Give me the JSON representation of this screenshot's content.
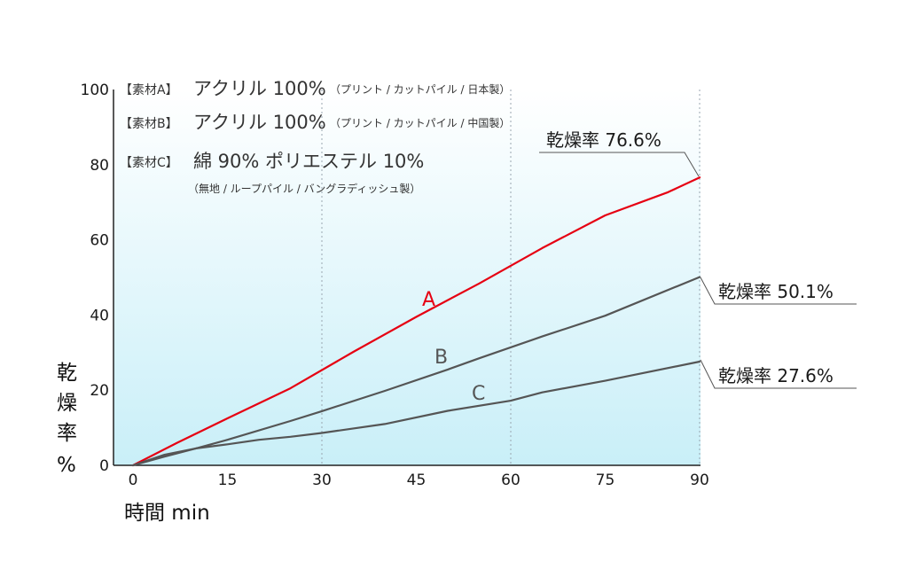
{
  "chart_data": {
    "type": "line",
    "xlabel": "時間 min",
    "ylabel_chars": [
      "乾",
      "燥",
      "率",
      "%"
    ],
    "xlim": [
      0,
      90
    ],
    "ylim": [
      0,
      100
    ],
    "x_ticks": [
      {
        "value": 0,
        "label": "0",
        "highlight": false
      },
      {
        "value": 15,
        "label": "15",
        "highlight": false
      },
      {
        "value": 30,
        "label": "30",
        "highlight": false
      },
      {
        "value": 45,
        "label": "45",
        "highlight": false
      },
      {
        "value": 60,
        "label": "60",
        "highlight": true
      },
      {
        "value": 75,
        "label": "75",
        "highlight": false
      },
      {
        "value": 90,
        "label": "90",
        "highlight": true
      }
    ],
    "y_ticks": [
      0,
      20,
      40,
      60,
      80,
      100
    ],
    "gridlines_x": [
      30,
      60,
      90
    ],
    "materials": [
      {
        "tag": "【素材A】",
        "main": "アクリル 100%",
        "note": "（プリント / カットパイル / 日本製）"
      },
      {
        "tag": "【素材B】",
        "main": "アクリル 100%",
        "note": "（プリント / カットパイル / 中国製）"
      },
      {
        "tag": "【素材C】",
        "main": "綿 90%  ポリエステル 10%",
        "note": "（無地 / ループパイル / バングラディッシュ製）"
      }
    ],
    "series": [
      {
        "name": "A",
        "color": "#e60012",
        "x": [
          0,
          7,
          15,
          25,
          35,
          45,
          55,
          65,
          75,
          85,
          90
        ],
        "y": [
          0,
          6,
          12.5,
          20.5,
          30.2,
          39.5,
          48.4,
          57.8,
          66.5,
          72.7,
          76.6
        ],
        "callout": "乾燥率 76.6%"
      },
      {
        "name": "B",
        "color": "#555555",
        "x": [
          0,
          5,
          10,
          15,
          25,
          30,
          40,
          50,
          55,
          65,
          75,
          90
        ],
        "y": [
          0,
          2.3,
          4.5,
          6.8,
          11.8,
          14.4,
          19.8,
          25.5,
          28.5,
          34.3,
          39.8,
          50.1
        ],
        "callout": "乾燥率 50.1%"
      },
      {
        "name": "C",
        "color": "#555555",
        "x": [
          0,
          5,
          10,
          15,
          20,
          25,
          30,
          40,
          50,
          60,
          65,
          75,
          90
        ],
        "y": [
          0,
          2.8,
          4.5,
          5.6,
          6.8,
          7.6,
          8.6,
          11.0,
          14.5,
          17.2,
          19.4,
          22.5,
          27.6
        ],
        "callout": "乾燥率 27.6%"
      }
    ]
  }
}
